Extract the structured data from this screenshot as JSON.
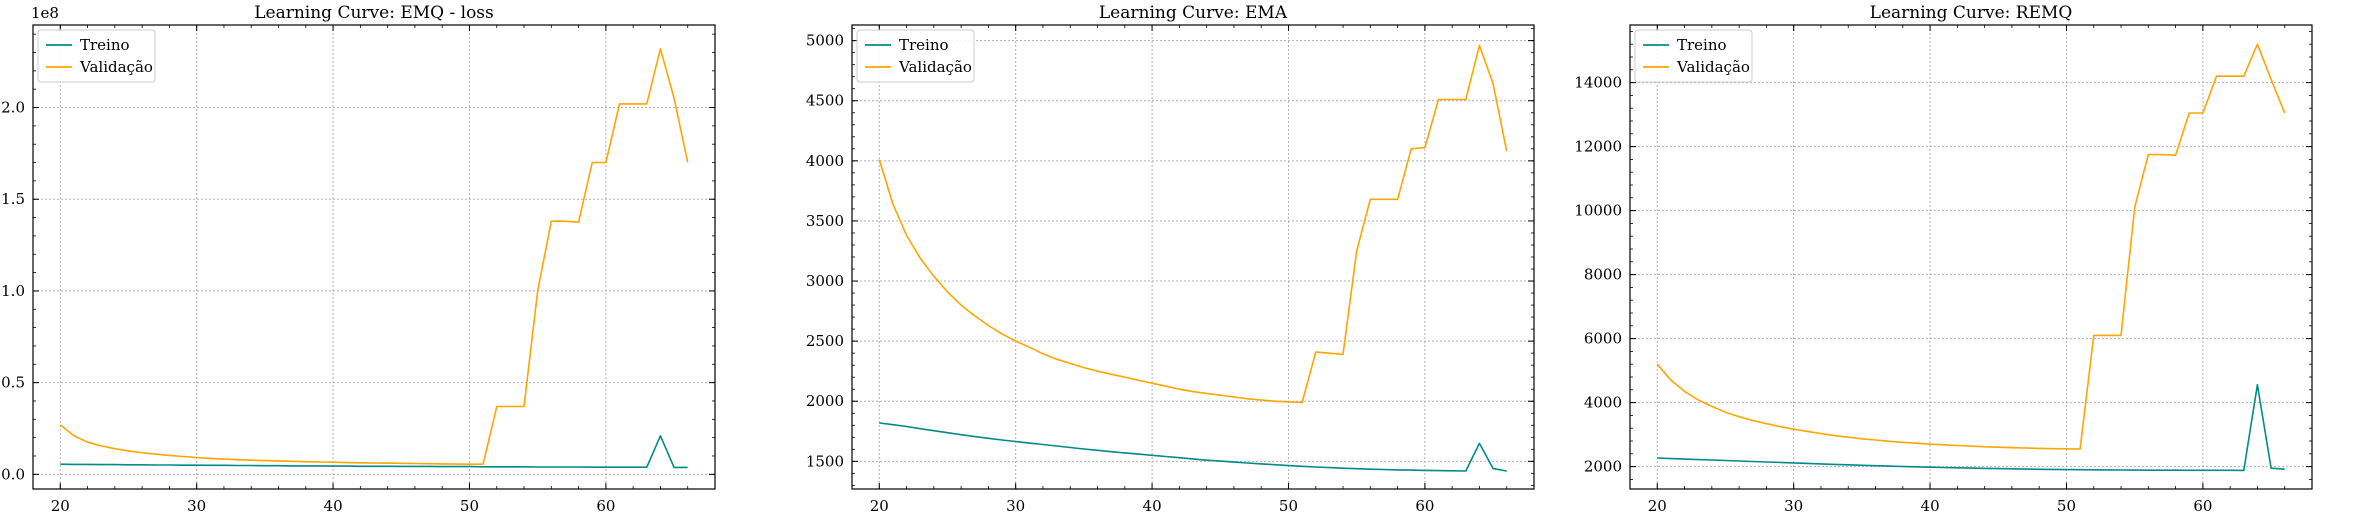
{
  "chart_data": [
    {
      "type": "line",
      "title": "Learning Curve: EMQ - loss",
      "xlabel": "",
      "ylabel": "",
      "offset_label": "1e8",
      "xlim": [
        18,
        68
      ],
      "ylim": [
        -0.08,
        2.45
      ],
      "xticks": [
        20,
        30,
        40,
        50,
        60
      ],
      "yticks": [
        0.0,
        0.5,
        1.0,
        1.5,
        2.0
      ],
      "ytick_labels": [
        "0.0",
        "0.5",
        "1.0",
        "1.5",
        "2.0"
      ],
      "grid": true,
      "legend": "upper left",
      "x": [
        20,
        21,
        22,
        23,
        24,
        25,
        26,
        27,
        28,
        29,
        30,
        31,
        32,
        33,
        34,
        35,
        36,
        37,
        38,
        39,
        40,
        41,
        42,
        43,
        44,
        45,
        46,
        47,
        48,
        49,
        50,
        51,
        52,
        53,
        54,
        55,
        56,
        57,
        58,
        59,
        60,
        61,
        62,
        63,
        64,
        65,
        66
      ],
      "series": [
        {
          "name": "Treino",
          "color": "#008b8b",
          "values": [
            0.055,
            0.054,
            0.054,
            0.053,
            0.053,
            0.052,
            0.052,
            0.051,
            0.051,
            0.05,
            0.05,
            0.049,
            0.049,
            0.048,
            0.048,
            0.047,
            0.047,
            0.046,
            0.046,
            0.046,
            0.045,
            0.045,
            0.044,
            0.044,
            0.044,
            0.043,
            0.043,
            0.043,
            0.042,
            0.042,
            0.042,
            0.041,
            0.041,
            0.041,
            0.041,
            0.04,
            0.04,
            0.04,
            0.04,
            0.039,
            0.039,
            0.039,
            0.039,
            0.039,
            0.21,
            0.038,
            0.038
          ]
        },
        {
          "name": "Validação",
          "color": "#ffa500",
          "values": [
            0.27,
            0.21,
            0.175,
            0.155,
            0.14,
            0.128,
            0.118,
            0.11,
            0.103,
            0.097,
            0.092,
            0.087,
            0.083,
            0.08,
            0.077,
            0.075,
            0.073,
            0.071,
            0.069,
            0.067,
            0.066,
            0.064,
            0.063,
            0.062,
            0.061,
            0.06,
            0.059,
            0.058,
            0.057,
            0.056,
            0.055,
            0.055,
            0.37,
            0.37,
            0.37,
            1.0,
            1.38,
            1.38,
            1.375,
            1.7,
            1.7,
            2.02,
            2.02,
            2.02,
            2.32,
            2.05,
            1.7
          ]
        }
      ]
    },
    {
      "type": "line",
      "title": "Learning Curve: EMA",
      "xlabel": "",
      "ylabel": "",
      "xlim": [
        18,
        68
      ],
      "ylim": [
        1270,
        5130
      ],
      "xticks": [
        20,
        30,
        40,
        50,
        60
      ],
      "yticks": [
        1500,
        2000,
        2500,
        3000,
        3500,
        4000,
        4500,
        5000
      ],
      "ytick_labels": [
        "1500",
        "2000",
        "2500",
        "3000",
        "3500",
        "4000",
        "4500",
        "5000"
      ],
      "grid": true,
      "legend": "upper left",
      "x": [
        20,
        21,
        22,
        23,
        24,
        25,
        26,
        27,
        28,
        29,
        30,
        31,
        32,
        33,
        34,
        35,
        36,
        37,
        38,
        39,
        40,
        41,
        42,
        43,
        44,
        45,
        46,
        47,
        48,
        49,
        50,
        51,
        52,
        53,
        54,
        55,
        56,
        57,
        58,
        59,
        60,
        61,
        62,
        63,
        64,
        65,
        66
      ],
      "series": [
        {
          "name": "Treino",
          "color": "#008b8b",
          "values": [
            1820,
            1805,
            1790,
            1772,
            1755,
            1738,
            1722,
            1706,
            1692,
            1678,
            1665,
            1652,
            1640,
            1628,
            1615,
            1603,
            1592,
            1580,
            1570,
            1560,
            1550,
            1540,
            1530,
            1520,
            1510,
            1502,
            1494,
            1486,
            1479,
            1472,
            1465,
            1459,
            1453,
            1448,
            1443,
            1439,
            1435,
            1432,
            1429,
            1427,
            1425,
            1423,
            1421,
            1420,
            1650,
            1440,
            1420
          ]
        },
        {
          "name": "Validação",
          "color": "#ffa500",
          "values": [
            4010,
            3640,
            3380,
            3190,
            3040,
            2910,
            2800,
            2710,
            2630,
            2560,
            2500,
            2450,
            2395,
            2350,
            2315,
            2280,
            2250,
            2225,
            2200,
            2175,
            2150,
            2125,
            2100,
            2080,
            2065,
            2050,
            2035,
            2020,
            2010,
            2000,
            1995,
            1990,
            2410,
            2400,
            2390,
            3250,
            3680,
            3680,
            3680,
            4100,
            4110,
            4510,
            4510,
            4510,
            4960,
            4640,
            4080
          ]
        }
      ]
    },
    {
      "type": "line",
      "title": "Learning Curve: REMQ",
      "xlabel": "",
      "ylabel": "",
      "xlim": [
        18,
        68
      ],
      "ylim": [
        1300,
        15800
      ],
      "xticks": [
        20,
        30,
        40,
        50,
        60
      ],
      "yticks": [
        2000,
        4000,
        6000,
        8000,
        10000,
        12000,
        14000
      ],
      "ytick_labels": [
        "2000",
        "4000",
        "6000",
        "8000",
        "10000",
        "12000",
        "14000"
      ],
      "grid": true,
      "legend": "upper left",
      "x": [
        20,
        21,
        22,
        23,
        24,
        25,
        26,
        27,
        28,
        29,
        30,
        31,
        32,
        33,
        34,
        35,
        36,
        37,
        38,
        39,
        40,
        41,
        42,
        43,
        44,
        45,
        46,
        47,
        48,
        49,
        50,
        51,
        52,
        53,
        54,
        55,
        56,
        57,
        58,
        59,
        60,
        61,
        62,
        63,
        64,
        65,
        66
      ],
      "series": [
        {
          "name": "Treino",
          "color": "#008b8b",
          "values": [
            2270,
            2250,
            2235,
            2220,
            2205,
            2190,
            2175,
            2160,
            2145,
            2130,
            2115,
            2100,
            2085,
            2070,
            2055,
            2040,
            2028,
            2016,
            2004,
            1993,
            1982,
            1972,
            1962,
            1953,
            1945,
            1937,
            1930,
            1923,
            1917,
            1912,
            1907,
            1903,
            1899,
            1896,
            1893,
            1891,
            1889,
            1887,
            1886,
            1885,
            1884,
            1883,
            1883,
            1882,
            4560,
            1950,
            1920
          ]
        },
        {
          "name": "Validação",
          "color": "#ffa500",
          "values": [
            5200,
            4700,
            4350,
            4080,
            3880,
            3700,
            3560,
            3440,
            3340,
            3250,
            3170,
            3100,
            3030,
            2970,
            2920,
            2870,
            2830,
            2790,
            2760,
            2730,
            2700,
            2680,
            2660,
            2640,
            2620,
            2605,
            2590,
            2580,
            2570,
            2560,
            2555,
            2550,
            6100,
            6100,
            6100,
            10100,
            11750,
            11750,
            11730,
            13050,
            13050,
            14200,
            14200,
            14200,
            15200,
            14100,
            13050
          ]
        }
      ]
    }
  ]
}
